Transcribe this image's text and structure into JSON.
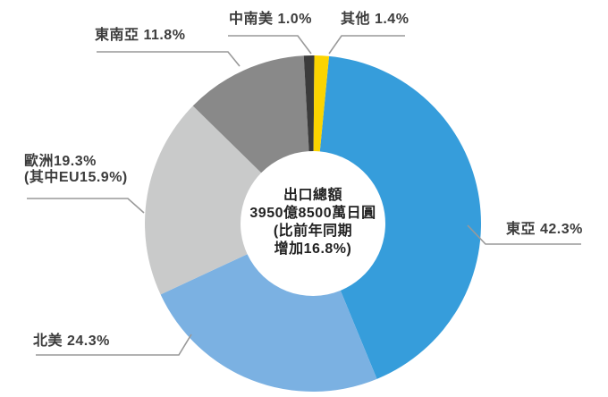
{
  "chart_data": {
    "type": "pie",
    "style": "donut",
    "title": "",
    "legend_position": "none",
    "start_angle_deg": 5.5,
    "inner_radius_ratio": 0.43,
    "series": [
      {
        "name": "東亞",
        "value": 42.3,
        "color": "#369ddb",
        "label": "東亞 42.3%"
      },
      {
        "name": "北美",
        "value": 24.3,
        "color": "#7bb1e2",
        "label": "北美 24.3%"
      },
      {
        "name": "歐洲",
        "value": 19.3,
        "color": "#c9caca",
        "label": "歐洲19.3%",
        "sublabel": "(其中EU15.9%)"
      },
      {
        "name": "東南亞",
        "value": 11.8,
        "color": "#898989",
        "label": "東南亞 11.8%"
      },
      {
        "name": "中南美",
        "value": 1.0,
        "color": "#3b3b3b",
        "label": "中南美 1.0%"
      },
      {
        "name": "其他",
        "value": 1.4,
        "color": "#fbd400",
        "label": "其他 1.4%"
      }
    ],
    "center_text": {
      "line1": "出口總額",
      "line2": "3950億8500萬日圓",
      "line3": "(比前年同期",
      "line4": "增加16.8%)"
    },
    "leader_line_color": "#999999",
    "label_text_color": "#3c3c3c"
  }
}
